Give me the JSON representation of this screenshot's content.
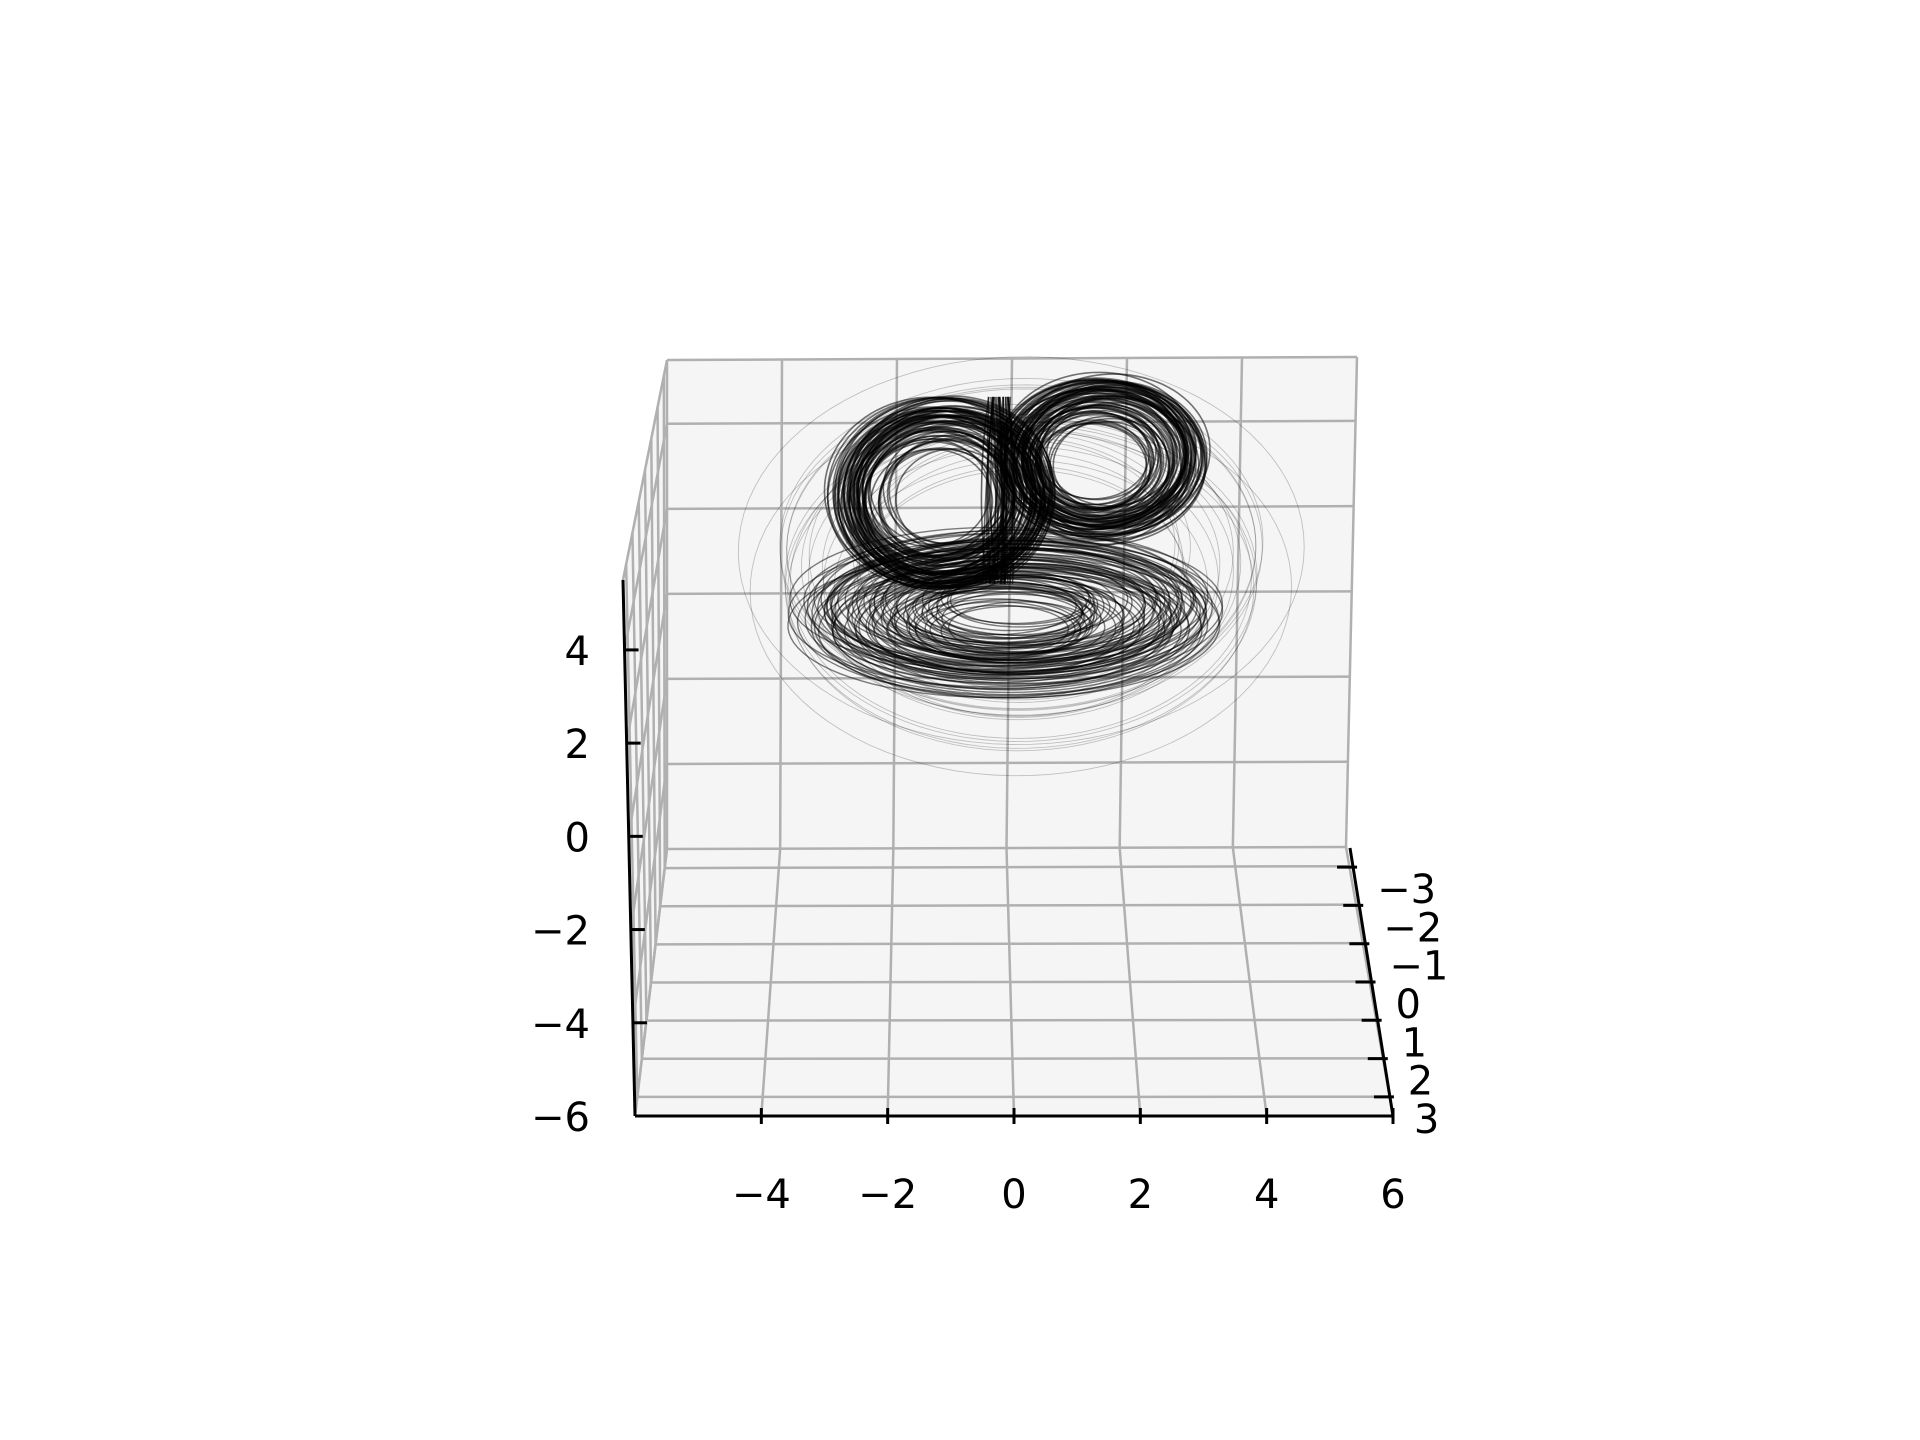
{
  "chart_data": {
    "type": "line",
    "plot_kind": "3d-trajectory",
    "title": "",
    "xlabel": "",
    "ylabel": "",
    "zlabel": "",
    "grid": true,
    "colors": {
      "pane": "#f5f5f5",
      "grid": "#b0b0b0",
      "trajectory": "#000000",
      "axis": "#000000"
    },
    "x_axis": {
      "range": [
        -6,
        6
      ],
      "ticks": [
        -4,
        -2,
        0,
        2,
        4,
        6
      ],
      "tick_labels": [
        "−4",
        "−2",
        "0",
        "2",
        "4",
        "6"
      ]
    },
    "y_axis": {
      "range": [
        -3.5,
        3.5
      ],
      "ticks": [
        -3,
        -2,
        -1,
        0,
        1,
        2,
        3
      ],
      "tick_labels": [
        "−3",
        "−2",
        "−1",
        "0",
        "1",
        "2",
        "3"
      ]
    },
    "z_axis": {
      "range": [
        -6,
        5.5
      ],
      "ticks": [
        -6,
        -4,
        -2,
        0,
        2,
        4
      ],
      "tick_labels": [
        "−6",
        "−4",
        "−2",
        "0",
        "2",
        "4"
      ]
    },
    "series": [
      {
        "style": "thin black line",
        "description_of_shape": "two-lobed chaotic attractor",
        "lobe_centers_xz": [
          [
            -1.2,
            2.3
          ],
          [
            1.6,
            3.1
          ]
        ],
        "lobe_radii_xz": [
          [
            1.6,
            1.9
          ],
          [
            1.5,
            1.6
          ]
        ],
        "outer_spiral_max_radius": 4.8,
        "base_level_z": -0.5
      }
    ]
  }
}
